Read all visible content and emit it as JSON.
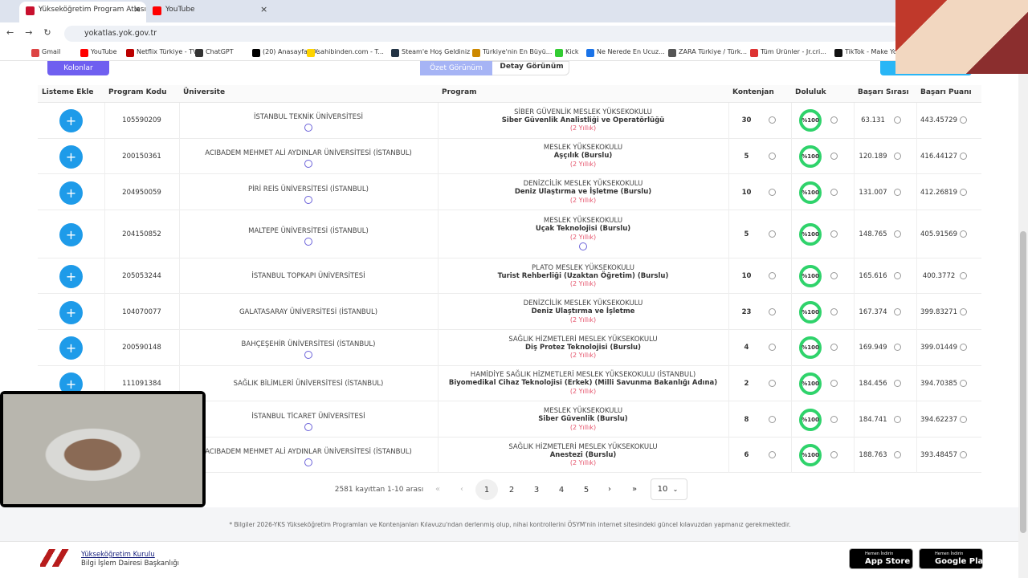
{
  "browser": {
    "tabs": [
      "Yükseköğretim Program Atlası",
      "YouTube"
    ],
    "url": "yokatlas.yok.gov.tr",
    "bookmarks": [
      "Gmail",
      "YouTube",
      "Netflix Türkiye - TV...",
      "ChatGPT",
      "(20) Anasayfa / X",
      "sahibinden.com - T...",
      "Steam'e Hoş Geldiniz",
      "Türkiye'nin En Büyü...",
      "Kick",
      "Ne Nerede En Ucuz...",
      "ZARA Türkiye / Türk...",
      "Tüm Ürünler - Jr.cri...",
      "TikTok - Make You"
    ]
  },
  "toolbar": {
    "columns_button": "Kolonlar",
    "views": [
      "Özet Görünüm",
      "Detay Görünüm"
    ]
  },
  "table": {
    "headers": [
      "Listeme Ekle",
      "Program Kodu",
      "Üniversite",
      "Program",
      "Kontenjan",
      "Doluluk",
      "Başarı Sırası",
      "Başarı Puanı"
    ],
    "rows": [
      {
        "code": "105590209",
        "university": "İSTANBUL TEKNİK ÜNİVERSİTESİ",
        "verified": true,
        "faculty": "SİBER GÜVENLİK MESLEK YÜKSEKOKULU",
        "program": "Siber Güvenlik Analistliği ve Operatörlüğü",
        "duration": "(2 Yıllık)",
        "quota": "30",
        "fill": "%100",
        "rank": "63.131",
        "score": "443.45729"
      },
      {
        "code": "200150361",
        "university": "ACIBADEM MEHMET ALİ AYDINLAR ÜNİVERSİTESİ (İSTANBUL)",
        "verified": true,
        "faculty": "MESLEK YÜKSEKOKULU",
        "program": "Aşçılık (Burslu)",
        "duration": "(2 Yıllık)",
        "quota": "5",
        "fill": "%100",
        "rank": "120.189",
        "score": "416.44127"
      },
      {
        "code": "204950059",
        "university": "PİRİ REİS ÜNİVERSİTESİ (İSTANBUL)",
        "verified": true,
        "faculty": "DENİZCİLİK MESLEK YÜKSEKOKULU",
        "program": "Deniz Ulaştırma ve İşletme (Burslu)",
        "duration": "(2 Yıllık)",
        "quota": "10",
        "fill": "%100",
        "rank": "131.007",
        "score": "412.26819"
      },
      {
        "code": "204150852",
        "university": "MALTEPE ÜNİVERSİTESİ (İSTANBUL)",
        "verified": true,
        "faculty": "MESLEK YÜKSEKOKULU",
        "program": "Uçak Teknolojisi (Burslu)",
        "duration": "(2 Yıllık)",
        "info": true,
        "quota": "5",
        "fill": "%100",
        "rank": "148.765",
        "score": "405.91569"
      },
      {
        "code": "205053244",
        "university": "İSTANBUL TOPKAPI ÜNİVERSİTESİ",
        "verified": false,
        "faculty": "PLATO MESLEK YÜKSEKOKULU",
        "program": "Turist Rehberliği (Uzaktan Öğretim) (Burslu)",
        "duration": "(2 Yıllık)",
        "quota": "10",
        "fill": "%100",
        "rank": "165.616",
        "score": "400.3772"
      },
      {
        "code": "104070077",
        "university": "GALATASARAY ÜNİVERSİTESİ (İSTANBUL)",
        "verified": false,
        "faculty": "DENİZCİLİK MESLEK YÜKSEKOKULU",
        "program": "Deniz Ulaştırma ve İşletme",
        "duration": "(2 Yıllık)",
        "quota": "23",
        "fill": "%100",
        "rank": "167.374",
        "score": "399.83271"
      },
      {
        "code": "200590148",
        "university": "BAHÇEŞEHİR ÜNİVERSİTESİ (İSTANBUL)",
        "verified": true,
        "faculty": "SAĞLIK HİZMETLERİ MESLEK YÜKSEKOKULU",
        "program": "Diş Protez Teknolojisi (Burslu)",
        "duration": "(2 Yıllık)",
        "quota": "4",
        "fill": "%100",
        "rank": "169.949",
        "score": "399.01449"
      },
      {
        "code": "111091384",
        "university": "SAĞLIK BİLİMLERİ ÜNİVERSİTESİ (İSTANBUL)",
        "verified": false,
        "faculty": "HAMİDİYE SAĞLIK HİZMETLERİ MESLEK YÜKSEKOKULU (İSTANBUL)",
        "program": "Biyomedikal Cihaz Teknolojisi (Erkek) (Milli Savunma Bakanlığı Adına)",
        "duration": "(2 Yıllık)",
        "quota": "2",
        "fill": "%100",
        "rank": "184.456",
        "score": "394.70385"
      },
      {
        "university": "İSTANBUL TİCARET ÜNİVERSİTESİ",
        "verified": true,
        "faculty": "MESLEK YÜKSEKOKULU",
        "program": "Siber Güvenlik (Burslu)",
        "duration": "(2 Yıllık)",
        "quota": "8",
        "fill": "%100",
        "rank": "184.741",
        "score": "394.62237"
      },
      {
        "university": "ACIBADEM MEHMET ALİ AYDINLAR ÜNİVERSİTESİ (İSTANBUL)",
        "verified": true,
        "faculty": "SAĞLIK HİZMETLERİ MESLEK YÜKSEKOKULU",
        "program": "Anestezi (Burslu)",
        "duration": "(2 Yıllık)",
        "quota": "6",
        "fill": "%100",
        "rank": "188.763",
        "score": "393.48457"
      }
    ]
  },
  "pagination": {
    "summary": "2581 kayıttan 1-10 arası",
    "pages": [
      "1",
      "2",
      "3",
      "4",
      "5"
    ],
    "page_size": "10"
  },
  "note": "* Bilgiler 2026-YKS Yükseköğretim Programları ve Kontenjanları Kılavuzu'ndan derlenmiş olup, nihai kontrollerini ÖSYM'nin internet sitesindeki güncel kılavuzdan yapmanız gerekmektedir.",
  "footer": {
    "org": "Yükseköğretim Kurulu",
    "dept": "Bilgi İşlem Dairesi Başkanlığı",
    "badges": [
      {
        "small": "Hemen İndirin",
        "big": "App Store"
      },
      {
        "small": "Hemen İndirin",
        "big": "Google Play"
      }
    ]
  }
}
